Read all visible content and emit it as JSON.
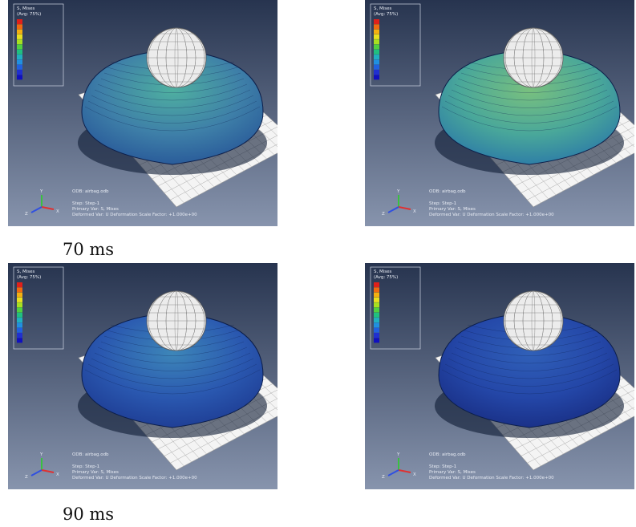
{
  "panels": [
    {
      "legend_title": "S, Mises",
      "legend_avg": "(Avg: 75%)",
      "odb": "ODB: airbag.odb",
      "step": "Step: Step-1",
      "primary": "Primary Var: S, Mises",
      "deformed": "Deformed Var: U   Deformation Scale Factor: +1.000e+00",
      "triad": [
        "Y",
        "Z",
        "X"
      ]
    },
    {
      "legend_title": "S, Mises",
      "legend_avg": "(Avg: 75%)",
      "odb": "ODB: airbag.odb",
      "step": "Step: Step-1",
      "primary": "Primary Var: S, Mises",
      "deformed": "Deformed Var: U   Deformation Scale Factor: +1.000e+00",
      "triad": [
        "Y",
        "Z",
        "X"
      ]
    },
    {
      "legend_title": "S, Mises",
      "legend_avg": "(Avg: 75%)",
      "odb": "ODB: airbag.odb",
      "step": "Step: Step-1",
      "primary": "Primary Var: S, Mises",
      "deformed": "Deformed Var: U   Deformation Scale Factor: +1.000e+00",
      "triad": [
        "Y",
        "Z",
        "X"
      ]
    },
    {
      "legend_title": "S, Mises",
      "legend_avg": "(Avg: 75%)",
      "odb": "ODB: airbag.odb",
      "step": "Step: Step-1",
      "primary": "Primary Var: S, Mises",
      "deformed": "Deformed Var: U   Deformation Scale Factor: +1.000e+00",
      "triad": [
        "Y",
        "Z",
        "X"
      ]
    }
  ],
  "captions": [
    "70 ms",
    "90 ms"
  ]
}
